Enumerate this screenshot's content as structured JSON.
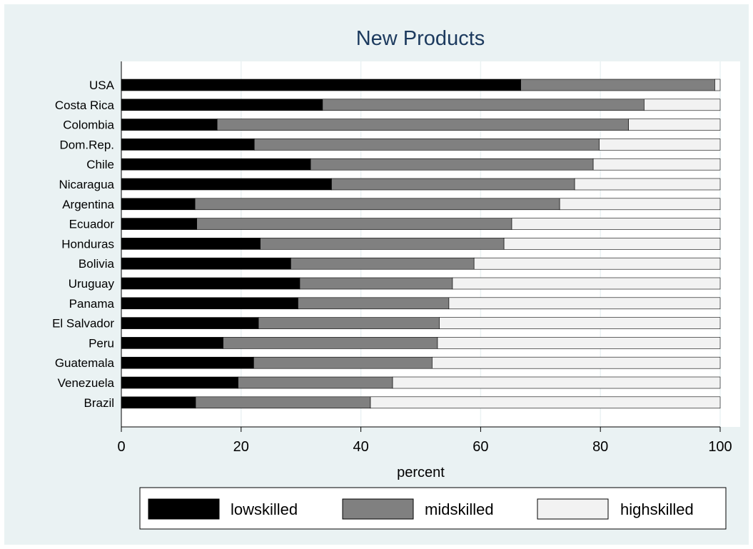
{
  "chart_data": {
    "type": "bar",
    "orientation": "horizontal",
    "stacked": true,
    "title": "New Products",
    "xlabel": "percent",
    "ylabel": "",
    "xlim": [
      0,
      100
    ],
    "xticks": [
      0,
      20,
      40,
      60,
      80,
      100
    ],
    "grid": true,
    "legend_position": "bottom",
    "categories": [
      "USA",
      "Costa Rica",
      "Colombia",
      "Dom.Rep.",
      "Chile",
      "Nicaragua",
      "Argentina",
      "Ecuador",
      "Honduras",
      "Bolivia",
      "Uruguay",
      "Panama",
      "El Salvador",
      "Peru",
      "Guatemala",
      "Venezuela",
      "Brazil"
    ],
    "series": [
      {
        "name": "lowskilled",
        "color": "#000000",
        "values": [
          66.7,
          33.6,
          16.0,
          22.2,
          31.6,
          35.1,
          12.3,
          12.6,
          23.2,
          28.3,
          29.8,
          29.5,
          22.9,
          17.0,
          22.1,
          19.5,
          12.4
        ]
      },
      {
        "name": "midskilled",
        "color": "#808080",
        "values": [
          32.4,
          53.7,
          68.7,
          57.6,
          47.2,
          40.6,
          60.9,
          52.6,
          40.7,
          30.6,
          25.5,
          25.2,
          30.2,
          35.8,
          29.8,
          25.8,
          29.2
        ]
      },
      {
        "name": "highskilled",
        "color": "#f2f2f2",
        "values": [
          0.9,
          12.7,
          15.3,
          20.2,
          21.2,
          24.3,
          26.8,
          34.8,
          36.1,
          41.1,
          44.7,
          45.3,
          46.9,
          47.2,
          48.1,
          54.7,
          58.4
        ]
      }
    ]
  }
}
